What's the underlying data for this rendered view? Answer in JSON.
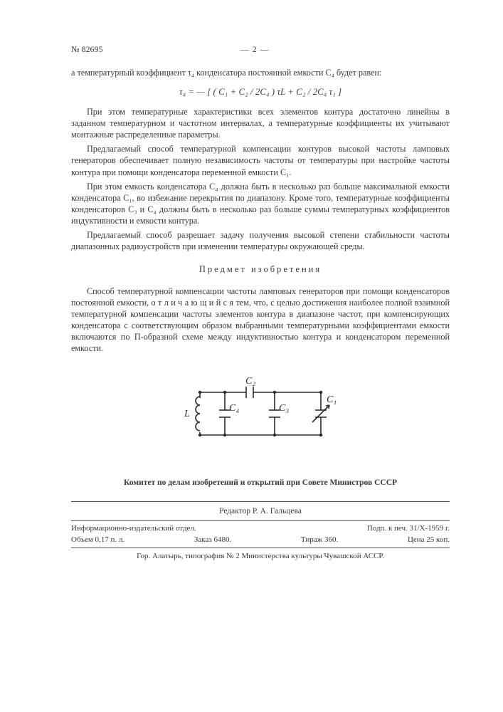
{
  "header": {
    "doc_no": "№ 82695",
    "page_indicator": "— 2 —"
  },
  "lead_in": "а температурный коэффициент τ₄ конденсатора постоянной емкости C₄ будет равен:",
  "formula": "τ₄ = — [ ( C₁ + C₂ / 2C₄ ) τL + C₂ / 2C₄ τ₁ ]",
  "paragraphs": [
    "При этом температурные характеристики всех элементов контура достаточно линейны в заданном температурном и частотном интервалах, а температурные коэффициенты их учитывают монтажные распределенные параметры.",
    "Предлагаемый способ температурной компенсации контуров высокой частоты ламповых генераторов обеспечивает полную независимость частоты от температуры при настройке частоты контура при помощи конденсатора переменной емкости C₁.",
    "При этом емкость конденсатора C₄ должна быть в несколько раз больше максимальной емкости конденсатора C₁, во избежание перекрытия по диапазону. Кроме того, температурные коэффициенты конденсаторов C₃ и C₄ должны быть в несколько раз больше суммы температурных коэффициентов индуктивности и емкости контура.",
    "Предлагаемый способ разрешает задачу получения высокой степени стабильности частоты диапазонных радиоустройств при изменении температуры окружающей среды."
  ],
  "section_title": "Предмет изобретения",
  "claim": "Способ температурной компенсации частоты ламповых генераторов при помощи конденсаторов постоянной емкости, о т л и ч а ю щ и й с я тем, что, с целью достижения наиболее полной взаимной температурной компенсации частоты элементов контура в диапазоне частот, при компенсирующих конденсатора с соответствующим образом выбранными температурными коэффициентами емкости включаются по П-образной схеме между индуктивностью контура и конденсатором переменной емкости.",
  "diagram": {
    "labels": {
      "L": "L",
      "C1": "C₁",
      "C2": "C₂",
      "C3": "C₃",
      "C4": "C₄"
    },
    "stroke": "#2b2b2b",
    "stroke_width": 1.6
  },
  "committee": "Комитет по делам изобретений и открытий при Совете Министров СССР",
  "editor": "Редактор Р. А. Гальцева",
  "footer": {
    "row1_left": "Информационно-издательский отдел.",
    "row1_right": "Подп. к печ. 31/X-1959 г.",
    "row2_left": "Объем 0,17 п. л.",
    "row2_mid": "Заказ 6480.",
    "row2_mid2": "Тираж 360.",
    "row2_right": "Цена 25 коп.",
    "row3": "Гор. Алатырь, типография № 2 Министерства культуры Чувашской АССР."
  }
}
